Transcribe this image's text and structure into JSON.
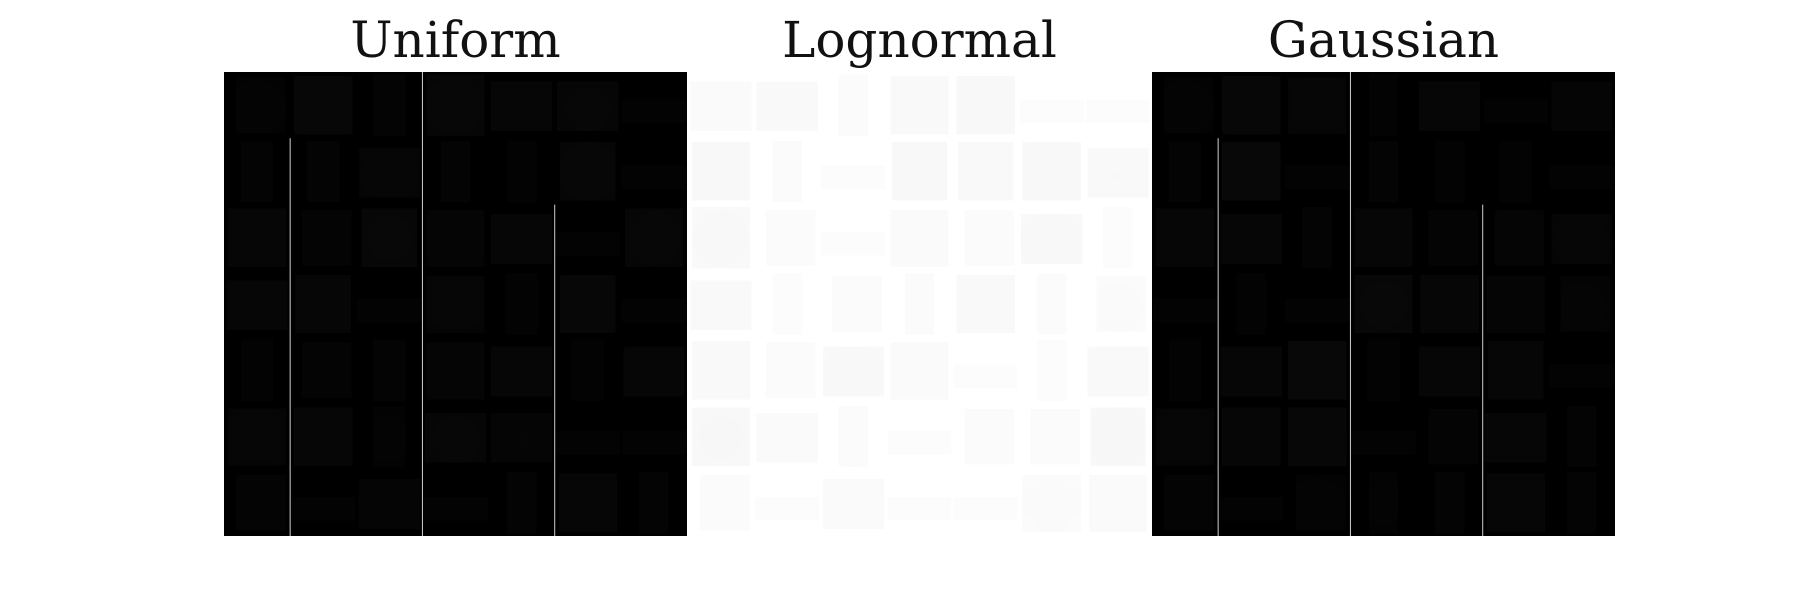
{
  "figure": {
    "panels": [
      {
        "title": "Uniform",
        "background": "#000000",
        "foreground": "#ffffff",
        "rows": 7,
        "cols": 7,
        "items": [
          "boot",
          "pullover",
          "dress",
          "coat",
          "bag",
          "bag",
          "sneaker",
          "dress",
          "dress",
          "bag",
          "trouser",
          "trouser",
          "shirt",
          "sneaker",
          "pullover",
          "boot",
          "shirt",
          "tshirt",
          "bag",
          "sneaker",
          "pullover",
          "bag",
          "shirt",
          "sneaker",
          "tshirt",
          "dress",
          "shirt",
          "sneaker",
          "dress",
          "boot",
          "dress",
          "tshirt",
          "bag",
          "dress",
          "bag",
          "tshirt",
          "pullover",
          "dress",
          "bag",
          "bag",
          "sneaker",
          "sneaker",
          "boot",
          "sneaker",
          "bag",
          "sneaker",
          "trouser",
          "pullover",
          "trouser"
        ]
      },
      {
        "title": "Lognormal",
        "background": "#ffffff",
        "foreground": "#111111",
        "rows": 7,
        "cols": 7,
        "items": [
          "bag",
          "bag",
          "trouser",
          "pullover",
          "pullover",
          "sneaker",
          "sneaker",
          "pullover",
          "trouser",
          "sneaker",
          "shirt",
          "shirt",
          "pullover",
          "bag",
          "coat",
          "boot",
          "sneaker",
          "tshirt",
          "boot",
          "bag",
          "trouser",
          "bag",
          "trouser",
          "boot",
          "trouser",
          "pullover",
          "trouser",
          "boot",
          "pullover",
          "boot",
          "bag",
          "tshirt",
          "sneaker",
          "trouser",
          "bag",
          "pullover",
          "bag",
          "trouser",
          "sneaker",
          "boot",
          "boot",
          "shirt",
          "boot",
          "sneaker",
          "bag",
          "sneaker",
          "sneaker",
          "tshirt",
          "tshirt"
        ]
      },
      {
        "title": "Gaussian",
        "background": "#000000",
        "foreground": "#ffffff",
        "rows": 7,
        "cols": 7,
        "items": [
          "boot",
          "pullover",
          "tshirt",
          "trouser",
          "bag",
          "sneaker",
          "bag",
          "dress",
          "pullover",
          "sneaker",
          "trouser",
          "trouser",
          "dress",
          "sneaker",
          "pullover",
          "bag",
          "trouser",
          "pullover",
          "boot",
          "boot",
          "bag",
          "sneaker",
          "trouser",
          "sneaker",
          "pullover",
          "pullover",
          "tshirt",
          "boot",
          "dress",
          "bag",
          "pullover",
          "dress",
          "bag",
          "shirt",
          "sneaker",
          "tshirt",
          "pullover",
          "pullover",
          "sneaker",
          "boot",
          "bag",
          "trouser",
          "boot",
          "sneaker",
          "boot",
          "trouser",
          "trouser",
          "pullover",
          "trouser"
        ]
      }
    ]
  }
}
